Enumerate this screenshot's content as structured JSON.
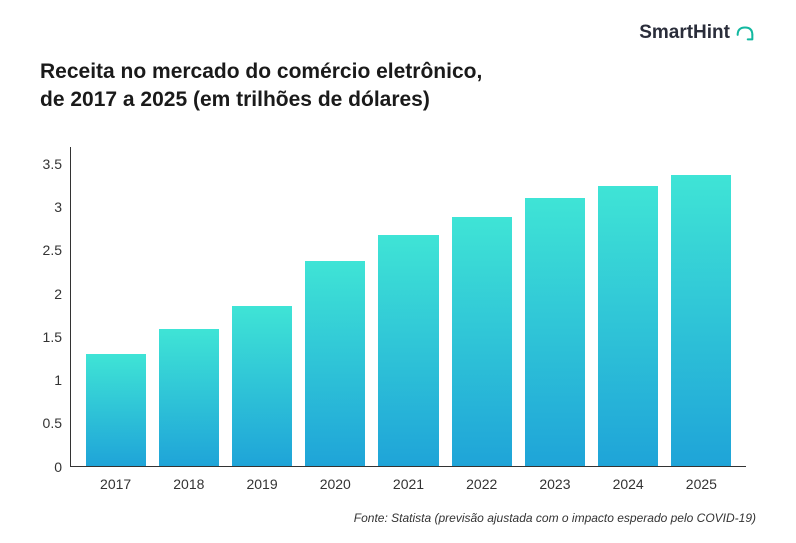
{
  "logo": {
    "text": "SmartHint",
    "icon_color": "#12b8a0"
  },
  "chart": {
    "type": "bar",
    "title": "Receita no mercado do comércio eletrônico,\nde 2017 a 2025 (em trilhões de dólares)",
    "title_fontsize": 21,
    "title_color": "#1a1a1a",
    "categories": [
      "2017",
      "2018",
      "2019",
      "2020",
      "2021",
      "2022",
      "2023",
      "2024",
      "2025"
    ],
    "values": [
      1.3,
      1.58,
      1.85,
      2.38,
      2.68,
      2.88,
      3.1,
      3.25,
      3.37
    ],
    "bar_gradient_top": "#3fe4d6",
    "bar_gradient_bottom": "#1fa4d8",
    "ylim": [
      0,
      3.7
    ],
    "yticks": [
      0,
      0.5,
      1,
      1.5,
      2,
      2.5,
      3,
      3.5
    ],
    "axis_color": "#333333",
    "label_fontsize": 14,
    "label_color": "#333333",
    "background_color": "#ffffff",
    "bar_width_ratio": 0.82
  },
  "source": {
    "text": "Fonte: Statista (previsão ajustada com o impacto esperado pelo COVID-19)",
    "fontsize": 12,
    "color": "#333333"
  }
}
